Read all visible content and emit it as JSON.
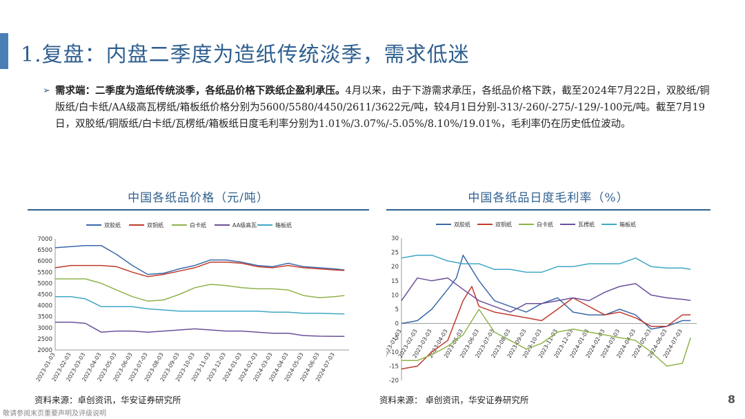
{
  "header": {
    "title": "1.复盘：内盘二季度为造纸传统淡季，需求低迷"
  },
  "bullet": {
    "lead": "需求端：二季度为造纸传统淡季，各纸品价格下跌纸企盈利承压。",
    "body": "4月以来，由于下游需求承压，各纸品价格下跌，截至2024年7月22日，双胶纸/铜版纸/白卡纸/AA级高瓦楞纸/箱板纸价格分别为5600/5580/4450/2611/3622元/吨，较4月1日分别-313/-260/-275/-129/-100元/吨。截至7月19日，双胶纸/铜版纸/白卡纸/瓦楞纸/箱板纸日度毛利率分别为1.01%/3.07%/-5.05%/8.10%/19.01%，毛利率仍在历史低位波动。"
  },
  "footer": {
    "source_left": "资料来源：卓创资讯，华安证券研究所",
    "source_right": "资料来源：  卓创资讯，华安证券研究所",
    "page_number": "8",
    "disclaimer": "敬请参阅末页重要声明及评级说明"
  },
  "chart_data": [
    {
      "type": "line",
      "title": "中国各纸品价格（元/吨）",
      "ylim": [
        2000,
        7000
      ],
      "yticks": [
        2000,
        2500,
        3000,
        3500,
        4000,
        4500,
        5000,
        5500,
        6000,
        6500,
        7000
      ],
      "x_ticks": [
        "2023-01-03",
        "2023-02-03",
        "2023-03-03",
        "2023-04-03",
        "2023-05-03",
        "2023-06-03",
        "2023-07-03",
        "2023-08-03",
        "2023-09-03",
        "2023-10-03",
        "2023-11-03",
        "2023-12-03",
        "2024-01-03",
        "2024-02-03",
        "2024-03-03",
        "2024-04-03",
        "2024-05-03",
        "2024-06-03",
        "2024-07-03"
      ],
      "legend_position": "top",
      "grid": false,
      "series": [
        {
          "name": "双胶纸",
          "color": "#3a67a8",
          "x": [
            "2023-01-03",
            "2023-02-03",
            "2023-03-03",
            "2023-04-03",
            "2023-05-03",
            "2023-06-03",
            "2023-07-03",
            "2023-08-03",
            "2023-09-03",
            "2023-10-03",
            "2023-11-03",
            "2023-12-03",
            "2024-01-03",
            "2024-02-03",
            "2024-03-03",
            "2024-04-03",
            "2024-05-03",
            "2024-06-03",
            "2024-07-03",
            "2024-07-22"
          ],
          "values": [
            6600,
            6650,
            6700,
            6700,
            6300,
            5800,
            5400,
            5450,
            5650,
            5800,
            6050,
            6050,
            5950,
            5800,
            5750,
            5900,
            5750,
            5700,
            5650,
            5600
          ]
        },
        {
          "name": "双铜纸",
          "color": "#c0392b",
          "x": [
            "2023-01-03",
            "2023-02-03",
            "2023-03-03",
            "2023-04-03",
            "2023-05-03",
            "2023-06-03",
            "2023-07-03",
            "2023-08-03",
            "2023-09-03",
            "2023-10-03",
            "2023-11-03",
            "2023-12-03",
            "2024-01-03",
            "2024-02-03",
            "2024-03-03",
            "2024-04-03",
            "2024-05-03",
            "2024-06-03",
            "2024-07-03",
            "2024-07-22"
          ],
          "values": [
            5700,
            5800,
            5800,
            5800,
            5750,
            5500,
            5300,
            5400,
            5550,
            5700,
            5950,
            5950,
            5900,
            5750,
            5700,
            5800,
            5700,
            5650,
            5600,
            5580
          ]
        },
        {
          "name": "白卡纸",
          "color": "#8db34a",
          "x": [
            "2023-01-03",
            "2023-02-03",
            "2023-03-03",
            "2023-04-03",
            "2023-05-03",
            "2023-06-03",
            "2023-07-03",
            "2023-08-03",
            "2023-09-03",
            "2023-10-03",
            "2023-11-03",
            "2023-12-03",
            "2024-01-03",
            "2024-02-03",
            "2024-03-03",
            "2024-04-03",
            "2024-05-03",
            "2024-06-03",
            "2024-07-03",
            "2024-07-22"
          ],
          "values": [
            5200,
            5200,
            5200,
            5000,
            4700,
            4400,
            4200,
            4250,
            4500,
            4800,
            4950,
            4900,
            4800,
            4750,
            4750,
            4700,
            4450,
            4350,
            4400,
            4450
          ]
        },
        {
          "name": "AA级高瓦",
          "color": "#6a4f9a",
          "x": [
            "2023-01-03",
            "2023-02-03",
            "2023-03-03",
            "2023-04-03",
            "2023-05-03",
            "2023-06-03",
            "2023-07-03",
            "2023-08-03",
            "2023-09-03",
            "2023-10-03",
            "2023-11-03",
            "2023-12-03",
            "2024-01-03",
            "2024-02-03",
            "2024-03-03",
            "2024-04-03",
            "2024-05-03",
            "2024-06-03",
            "2024-07-03",
            "2024-07-22"
          ],
          "values": [
            3250,
            3250,
            3200,
            2800,
            2850,
            2850,
            2800,
            2850,
            2900,
            2950,
            2900,
            2850,
            2850,
            2800,
            2750,
            2750,
            2650,
            2620,
            2611,
            2611
          ]
        },
        {
          "name": "箱板纸",
          "color": "#3fa7c4",
          "x": [
            "2023-01-03",
            "2023-02-03",
            "2023-03-03",
            "2023-04-03",
            "2023-05-03",
            "2023-06-03",
            "2023-07-03",
            "2023-08-03",
            "2023-09-03",
            "2023-10-03",
            "2023-11-03",
            "2023-12-03",
            "2024-01-03",
            "2024-02-03",
            "2024-03-03",
            "2024-04-03",
            "2024-05-03",
            "2024-06-03",
            "2024-07-03",
            "2024-07-22"
          ],
          "values": [
            4400,
            4400,
            4300,
            3950,
            3950,
            3950,
            3850,
            3800,
            3750,
            3750,
            3750,
            3750,
            3750,
            3750,
            3700,
            3700,
            3650,
            3650,
            3630,
            3622
          ]
        }
      ]
    },
    {
      "type": "line",
      "title": "中国各纸品日度毛利率（%）",
      "ylim": [
        -20,
        30
      ],
      "yticks": [
        -20,
        -15,
        -10,
        -5,
        0,
        5,
        10,
        15,
        20,
        25,
        30
      ],
      "x_ticks": [
        "2023-01-03",
        "2023-02-03",
        "2023-03-03",
        "2023-04-03",
        "2023-05-03",
        "2023-06-03",
        "2023-07-03",
        "2023-08-03",
        "2023-09-03",
        "2023-10-03",
        "2023-11-03",
        "2023-12-03",
        "2024-01-03",
        "2024-02-03",
        "2024-03-03",
        "2024-04-03",
        "2024-05-03",
        "2024-06-03",
        "2024-07-03"
      ],
      "legend_position": "top",
      "grid": false,
      "series": [
        {
          "name": "双胶纸",
          "color": "#3a67a8",
          "x": [
            "2023-01-03",
            "2023-02-03",
            "2023-03-03",
            "2023-04-03",
            "2023-04-20",
            "2023-05-03",
            "2023-06-03",
            "2023-07-03",
            "2023-08-03",
            "2023-09-03",
            "2023-10-03",
            "2023-11-03",
            "2023-12-03",
            "2024-01-03",
            "2024-02-03",
            "2024-03-03",
            "2024-04-03",
            "2024-05-03",
            "2024-06-03",
            "2024-07-03",
            "2024-07-19"
          ],
          "values": [
            0,
            1,
            5,
            12,
            16,
            24,
            15,
            8,
            6,
            4,
            7,
            9,
            4,
            3,
            3,
            5,
            3,
            -2,
            -1,
            1,
            1.01
          ]
        },
        {
          "name": "双铜纸",
          "color": "#c0392b",
          "x": [
            "2023-01-03",
            "2023-02-03",
            "2023-03-03",
            "2023-04-03",
            "2023-05-03",
            "2023-05-20",
            "2023-06-03",
            "2023-07-03",
            "2023-08-03",
            "2023-09-03",
            "2023-10-03",
            "2023-11-03",
            "2023-12-03",
            "2024-01-03",
            "2024-02-03",
            "2024-03-03",
            "2024-04-03",
            "2024-05-03",
            "2024-06-03",
            "2024-07-03",
            "2024-07-19"
          ],
          "values": [
            -16,
            -15,
            -10,
            -6,
            8,
            13,
            6,
            4,
            3,
            2,
            1,
            5,
            9,
            6,
            3,
            4,
            2,
            -1,
            -1,
            3,
            3.07
          ]
        },
        {
          "name": "白卡纸",
          "color": "#8db34a",
          "x": [
            "2023-01-03",
            "2023-02-03",
            "2023-03-03",
            "2023-04-03",
            "2023-05-03",
            "2023-06-03",
            "2023-07-03",
            "2023-08-03",
            "2023-09-03",
            "2023-10-03",
            "2023-11-03",
            "2023-12-03",
            "2024-01-03",
            "2024-02-03",
            "2024-03-03",
            "2024-04-03",
            "2024-05-03",
            "2024-06-03",
            "2024-07-03",
            "2024-07-19"
          ],
          "values": [
            -13,
            -13,
            -11,
            -8,
            -4,
            5,
            -3,
            -6,
            -9,
            -7,
            -3,
            -2,
            -3,
            -4,
            -5,
            -6,
            -10,
            -15,
            -14,
            -5.05
          ]
        },
        {
          "name": "瓦楞纸",
          "color": "#6a4f9a",
          "x": [
            "2023-01-03",
            "2023-02-03",
            "2023-03-03",
            "2023-04-03",
            "2023-05-03",
            "2023-06-03",
            "2023-07-03",
            "2023-08-03",
            "2023-09-03",
            "2023-10-03",
            "2023-11-03",
            "2023-12-03",
            "2024-01-03",
            "2024-02-03",
            "2024-03-03",
            "2024-04-03",
            "2024-05-03",
            "2024-06-03",
            "2024-07-03",
            "2024-07-19"
          ],
          "values": [
            8,
            16,
            15,
            16,
            12,
            8,
            6,
            4,
            7,
            7,
            8,
            9,
            8,
            11,
            13,
            14,
            10,
            9,
            8.5,
            8.1
          ]
        },
        {
          "name": "箱板纸",
          "color": "#3fa7c4",
          "x": [
            "2023-01-03",
            "2023-02-03",
            "2023-03-03",
            "2023-04-03",
            "2023-05-03",
            "2023-06-03",
            "2023-07-03",
            "2023-08-03",
            "2023-09-03",
            "2023-10-03",
            "2023-11-03",
            "2023-12-03",
            "2024-01-03",
            "2024-02-03",
            "2024-03-03",
            "2024-04-03",
            "2024-05-03",
            "2024-06-03",
            "2024-07-03",
            "2024-07-19"
          ],
          "values": [
            23,
            24,
            24,
            22,
            21,
            21,
            19,
            19,
            18,
            18,
            20,
            20,
            21,
            21,
            21,
            23,
            20,
            19.5,
            19.5,
            19.01
          ]
        }
      ]
    }
  ]
}
